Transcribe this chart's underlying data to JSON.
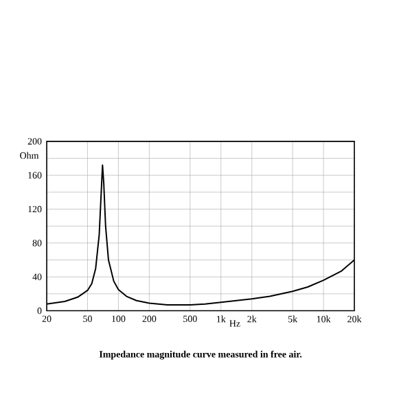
{
  "chart_data": {
    "type": "line",
    "xlabel": "Hz",
    "ylabel": "Ohm",
    "annotations": [
      "Impedance magnitude curve measured in free air."
    ],
    "log": "x",
    "grid": true,
    "color": "#000000",
    "x": [
      20,
      30,
      40,
      50,
      55,
      60,
      65,
      68,
      70,
      72,
      75,
      80,
      90,
      100,
      120,
      150,
      200,
      300,
      500,
      700,
      1000,
      2000,
      3000,
      5000,
      7000,
      10000,
      15000,
      20000
    ],
    "values": [
      8,
      11,
      16,
      24,
      32,
      50,
      90,
      140,
      172,
      150,
      100,
      60,
      35,
      25,
      17,
      12,
      9,
      7,
      7,
      8,
      10,
      14,
      17,
      23,
      28,
      36,
      47,
      60
    ],
    "xlim": [
      20,
      20000
    ],
    "ylim": [
      0,
      200
    ],
    "xticks": [
      20,
      50,
      100,
      200,
      500,
      {
        "value": 1000,
        "label": "1k"
      },
      {
        "value": 2000,
        "label": "2k"
      },
      {
        "value": 5000,
        "label": "5k"
      },
      {
        "value": 10000,
        "label": "10k"
      },
      {
        "value": 20000,
        "label": "20k"
      }
    ],
    "yticks": [
      0,
      40,
      80,
      120,
      160,
      200
    ]
  }
}
